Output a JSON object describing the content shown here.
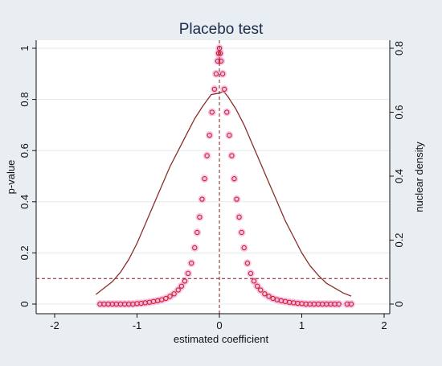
{
  "chart_data": {
    "type": "scatter",
    "title": "Placebo test",
    "xlabel": "estimated coefficient",
    "ylabel_left": "p-value",
    "ylabel_right": "nuclear density",
    "xlim": [
      -2,
      2
    ],
    "ylim_left": [
      0,
      1
    ],
    "ylim_right": [
      0,
      0.8
    ],
    "xticks": [
      -2,
      -1,
      0,
      1,
      2
    ],
    "yticks_left": [
      0,
      0.2,
      0.4,
      0.6,
      0.8,
      1
    ],
    "yticks_right": [
      0,
      0.2,
      0.4,
      0.6,
      0.8
    ],
    "grid": "horizontal",
    "reference_lines": {
      "x": 0,
      "y": 0.1
    },
    "colors": {
      "marker": "#d81e1e",
      "marker_glow": "#e79adf",
      "density_line": "#8b2e2a",
      "reference_line": "#8b1a1a",
      "plot_background": "#ffffff",
      "outer_background": "#e9eef3",
      "title": "#1c2b4a"
    },
    "series": [
      {
        "kind": "scatter",
        "axis": "left",
        "points": [
          [
            -1.45,
            0
          ],
          [
            -1.4,
            0
          ],
          [
            -1.35,
            0
          ],
          [
            -1.3,
            0
          ],
          [
            -1.25,
            0
          ],
          [
            -1.2,
            0
          ],
          [
            -1.15,
            0
          ],
          [
            -1.1,
            0
          ],
          [
            -1.05,
            0
          ],
          [
            -1.0,
            0.002
          ],
          [
            -0.95,
            0.003
          ],
          [
            -0.9,
            0.005
          ],
          [
            -0.85,
            0.007
          ],
          [
            -0.8,
            0.01
          ],
          [
            -0.75,
            0.013
          ],
          [
            -0.7,
            0.017
          ],
          [
            -0.65,
            0.022
          ],
          [
            -0.6,
            0.03
          ],
          [
            -0.55,
            0.04
          ],
          [
            -0.5,
            0.055
          ],
          [
            -0.46,
            0.07
          ],
          [
            -0.42,
            0.09
          ],
          [
            -0.38,
            0.12
          ],
          [
            -0.34,
            0.16
          ],
          [
            -0.3,
            0.22
          ],
          [
            -0.27,
            0.28
          ],
          [
            -0.24,
            0.34
          ],
          [
            -0.21,
            0.41
          ],
          [
            -0.18,
            0.49
          ],
          [
            -0.15,
            0.58
          ],
          [
            -0.12,
            0.66
          ],
          [
            -0.09,
            0.75
          ],
          [
            -0.06,
            0.84
          ],
          [
            -0.04,
            0.9
          ],
          [
            -0.02,
            0.95
          ],
          [
            -0.01,
            0.98
          ],
          [
            0.0,
            1.0
          ],
          [
            0.01,
            0.98
          ],
          [
            0.02,
            0.95
          ],
          [
            0.04,
            0.9
          ],
          [
            0.06,
            0.84
          ],
          [
            0.09,
            0.75
          ],
          [
            0.12,
            0.66
          ],
          [
            0.15,
            0.58
          ],
          [
            0.18,
            0.49
          ],
          [
            0.21,
            0.41
          ],
          [
            0.24,
            0.34
          ],
          [
            0.27,
            0.28
          ],
          [
            0.3,
            0.22
          ],
          [
            0.34,
            0.16
          ],
          [
            0.38,
            0.12
          ],
          [
            0.42,
            0.09
          ],
          [
            0.46,
            0.07
          ],
          [
            0.5,
            0.055
          ],
          [
            0.55,
            0.04
          ],
          [
            0.6,
            0.03
          ],
          [
            0.65,
            0.022
          ],
          [
            0.7,
            0.017
          ],
          [
            0.75,
            0.013
          ],
          [
            0.8,
            0.01
          ],
          [
            0.85,
            0.007
          ],
          [
            0.9,
            0.005
          ],
          [
            0.95,
            0.003
          ],
          [
            1.0,
            0.002
          ],
          [
            1.05,
            0
          ],
          [
            1.1,
            0
          ],
          [
            1.15,
            0
          ],
          [
            1.2,
            0
          ],
          [
            1.25,
            0
          ],
          [
            1.3,
            0
          ],
          [
            1.35,
            0
          ],
          [
            1.4,
            0
          ],
          [
            1.45,
            0
          ],
          [
            1.55,
            0
          ],
          [
            1.6,
            0
          ]
        ]
      },
      {
        "kind": "line",
        "axis": "right",
        "points": [
          [
            -1.5,
            0.03
          ],
          [
            -1.4,
            0.05
          ],
          [
            -1.3,
            0.07
          ],
          [
            -1.2,
            0.1
          ],
          [
            -1.1,
            0.14
          ],
          [
            -1.0,
            0.19
          ],
          [
            -0.9,
            0.25
          ],
          [
            -0.8,
            0.31
          ],
          [
            -0.7,
            0.37
          ],
          [
            -0.6,
            0.43
          ],
          [
            -0.5,
            0.48
          ],
          [
            -0.4,
            0.53
          ],
          [
            -0.3,
            0.58
          ],
          [
            -0.2,
            0.62
          ],
          [
            -0.1,
            0.655
          ],
          [
            0.0,
            0.66
          ],
          [
            0.05,
            0.665
          ],
          [
            0.1,
            0.65
          ],
          [
            0.2,
            0.61
          ],
          [
            0.3,
            0.56
          ],
          [
            0.4,
            0.5
          ],
          [
            0.5,
            0.44
          ],
          [
            0.6,
            0.38
          ],
          [
            0.7,
            0.32
          ],
          [
            0.8,
            0.26
          ],
          [
            0.9,
            0.21
          ],
          [
            1.0,
            0.16
          ],
          [
            1.1,
            0.12
          ],
          [
            1.2,
            0.09
          ],
          [
            1.3,
            0.065
          ],
          [
            1.4,
            0.05
          ],
          [
            1.5,
            0.035
          ],
          [
            1.6,
            0.025
          ]
        ]
      }
    ]
  }
}
